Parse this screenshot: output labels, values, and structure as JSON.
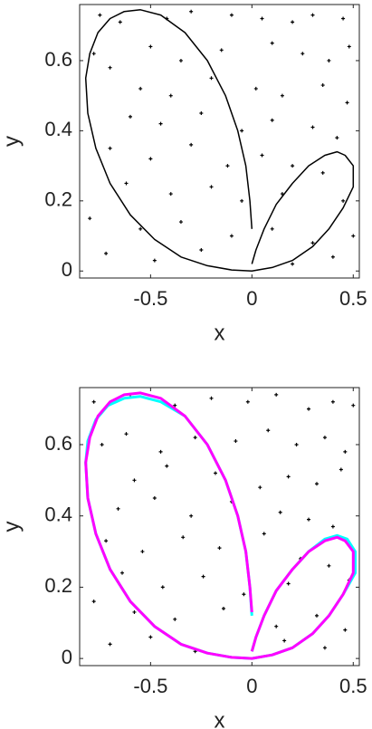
{
  "chart_data": [
    {
      "type": "scatter",
      "xlabel": "x",
      "ylabel": "y",
      "xlim": [
        -0.85,
        0.53
      ],
      "ylim": [
        -0.02,
        0.76
      ],
      "xticks": [
        -0.5,
        0,
        0.5
      ],
      "yticks": [
        0,
        0.2,
        0.4,
        0.6
      ],
      "series": [
        {
          "mode": "points",
          "color": "#000000",
          "x": [
            -0.75,
            -0.65,
            -0.42,
            -0.3,
            -0.1,
            0.05,
            0.2,
            0.3,
            0.45,
            -0.78,
            -0.7,
            -0.5,
            -0.35,
            -0.15,
            0.1,
            0.25,
            0.38,
            0.48,
            -0.55,
            -0.4,
            -0.2,
            0.02,
            0.15,
            0.35,
            0.47,
            -0.6,
            -0.45,
            -0.25,
            -0.05,
            0.1,
            0.3,
            0.42,
            -0.7,
            -0.5,
            -0.3,
            -0.12,
            0.05,
            0.2,
            0.35,
            -0.62,
            -0.4,
            -0.2,
            -0.05,
            0.15,
            0.45,
            -0.8,
            -0.55,
            -0.35,
            -0.1,
            0.1,
            0.3,
            0.5,
            -0.72,
            -0.48,
            -0.25,
            0.2,
            0.4
          ],
          "y": [
            0.73,
            0.71,
            0.72,
            0.74,
            0.73,
            0.72,
            0.71,
            0.73,
            0.72,
            0.62,
            0.58,
            0.64,
            0.6,
            0.63,
            0.65,
            0.62,
            0.6,
            0.64,
            0.52,
            0.5,
            0.55,
            0.52,
            0.5,
            0.53,
            0.48,
            0.44,
            0.42,
            0.45,
            0.4,
            0.43,
            0.41,
            0.38,
            0.35,
            0.32,
            0.36,
            0.3,
            0.33,
            0.3,
            0.28,
            0.25,
            0.22,
            0.24,
            0.2,
            0.22,
            0.2,
            0.15,
            0.12,
            0.14,
            0.1,
            0.12,
            0.08,
            0.1,
            0.05,
            0.03,
            0.06,
            0.02,
            0.04
          ]
        },
        {
          "mode": "line",
          "color": "#000000",
          "x": [
            0,
            -0.01,
            -0.03,
            -0.07,
            -0.13,
            -0.22,
            -0.33,
            -0.45,
            -0.55,
            -0.63,
            -0.7,
            -0.76,
            -0.8,
            -0.82,
            -0.81,
            -0.77,
            -0.7,
            -0.6,
            -0.48,
            -0.35,
            -0.22,
            -0.1,
            0,
            0.1,
            0.2,
            0.3,
            0.38,
            0.45,
            0.5,
            0.5,
            0.46,
            0.42,
            0.36,
            0.28,
            0.2,
            0.12,
            0.06,
            0.02,
            0
          ],
          "y": [
            0.12,
            0.2,
            0.3,
            0.4,
            0.5,
            0.6,
            0.68,
            0.73,
            0.745,
            0.74,
            0.72,
            0.68,
            0.62,
            0.55,
            0.45,
            0.35,
            0.25,
            0.16,
            0.09,
            0.04,
            0.015,
            0.003,
            0,
            0.01,
            0.03,
            0.07,
            0.12,
            0.18,
            0.24,
            0.3,
            0.33,
            0.34,
            0.33,
            0.3,
            0.25,
            0.19,
            0.12,
            0.06,
            0.02
          ]
        }
      ]
    },
    {
      "type": "scatter",
      "xlabel": "x",
      "ylabel": "y",
      "xlim": [
        -0.85,
        0.53
      ],
      "ylim": [
        -0.02,
        0.76
      ],
      "xticks": [
        -0.5,
        0,
        0.5
      ],
      "yticks": [
        0,
        0.2,
        0.4,
        0.6
      ],
      "series": [
        {
          "mode": "points",
          "color": "#000000",
          "x": [
            -0.78,
            -0.6,
            -0.38,
            -0.2,
            -0.02,
            0.12,
            0.28,
            0.4,
            0.5,
            -0.74,
            -0.62,
            -0.45,
            -0.28,
            -0.08,
            0.08,
            0.22,
            0.36,
            0.46,
            -0.58,
            -0.42,
            -0.18,
            0.04,
            0.18,
            0.32,
            0.44,
            -0.66,
            -0.48,
            -0.3,
            -0.1,
            0.14,
            0.28,
            0.4,
            -0.72,
            -0.54,
            -0.34,
            -0.16,
            0.06,
            0.24,
            0.38,
            -0.64,
            -0.44,
            -0.24,
            -0.04,
            0.18,
            0.48,
            -0.78,
            -0.58,
            -0.38,
            -0.14,
            0.12,
            0.32,
            0.46,
            -0.7,
            -0.5,
            -0.28,
            0.16,
            0.36
          ],
          "y": [
            0.72,
            0.74,
            0.71,
            0.73,
            0.72,
            0.74,
            0.7,
            0.72,
            0.71,
            0.6,
            0.63,
            0.58,
            0.62,
            0.61,
            0.64,
            0.6,
            0.62,
            0.58,
            0.5,
            0.54,
            0.52,
            0.48,
            0.51,
            0.49,
            0.53,
            0.42,
            0.45,
            0.4,
            0.44,
            0.41,
            0.39,
            0.37,
            0.33,
            0.3,
            0.34,
            0.31,
            0.35,
            0.28,
            0.26,
            0.24,
            0.2,
            0.23,
            0.18,
            0.21,
            0.22,
            0.16,
            0.13,
            0.11,
            0.14,
            0.09,
            0.12,
            0.08,
            0.04,
            0.06,
            0.02,
            0.05,
            0.03
          ]
        },
        {
          "mode": "line",
          "color": "#00ffff",
          "x": [
            0,
            -0.01,
            -0.03,
            -0.07,
            -0.13,
            -0.22,
            -0.33,
            -0.45,
            -0.55,
            -0.63,
            -0.71,
            -0.77,
            -0.81,
            -0.82,
            -0.81,
            -0.77,
            -0.7,
            -0.6,
            -0.48,
            -0.35,
            -0.22,
            -0.1,
            0,
            0.1,
            0.2,
            0.3,
            0.38,
            0.45,
            0.51,
            0.51,
            0.47,
            0.42,
            0.36,
            0.28,
            0.2,
            0.12,
            0.06,
            0.02,
            0
          ],
          "y": [
            0.12,
            0.2,
            0.3,
            0.4,
            0.5,
            0.6,
            0.68,
            0.72,
            0.735,
            0.73,
            0.71,
            0.67,
            0.61,
            0.55,
            0.45,
            0.35,
            0.25,
            0.16,
            0.09,
            0.04,
            0.015,
            0.003,
            0,
            0.01,
            0.03,
            0.07,
            0.12,
            0.18,
            0.24,
            0.3,
            0.335,
            0.345,
            0.335,
            0.3,
            0.25,
            0.19,
            0.12,
            0.06,
            0.02
          ]
        },
        {
          "mode": "line",
          "color": "#ff00ff",
          "x": [
            0,
            -0.01,
            -0.03,
            -0.07,
            -0.13,
            -0.22,
            -0.33,
            -0.45,
            -0.55,
            -0.63,
            -0.7,
            -0.76,
            -0.8,
            -0.82,
            -0.81,
            -0.77,
            -0.7,
            -0.6,
            -0.48,
            -0.35,
            -0.22,
            -0.1,
            0,
            0.1,
            0.2,
            0.3,
            0.38,
            0.45,
            0.5,
            0.5,
            0.46,
            0.42,
            0.36,
            0.28,
            0.2,
            0.12,
            0.06,
            0.02,
            0
          ],
          "y": [
            0.13,
            0.2,
            0.3,
            0.4,
            0.5,
            0.6,
            0.68,
            0.73,
            0.745,
            0.74,
            0.72,
            0.68,
            0.62,
            0.55,
            0.45,
            0.35,
            0.25,
            0.16,
            0.09,
            0.04,
            0.015,
            0.003,
            0,
            0.01,
            0.03,
            0.07,
            0.12,
            0.18,
            0.24,
            0.3,
            0.33,
            0.34,
            0.33,
            0.3,
            0.25,
            0.19,
            0.12,
            0.06,
            0.02
          ]
        }
      ]
    }
  ]
}
